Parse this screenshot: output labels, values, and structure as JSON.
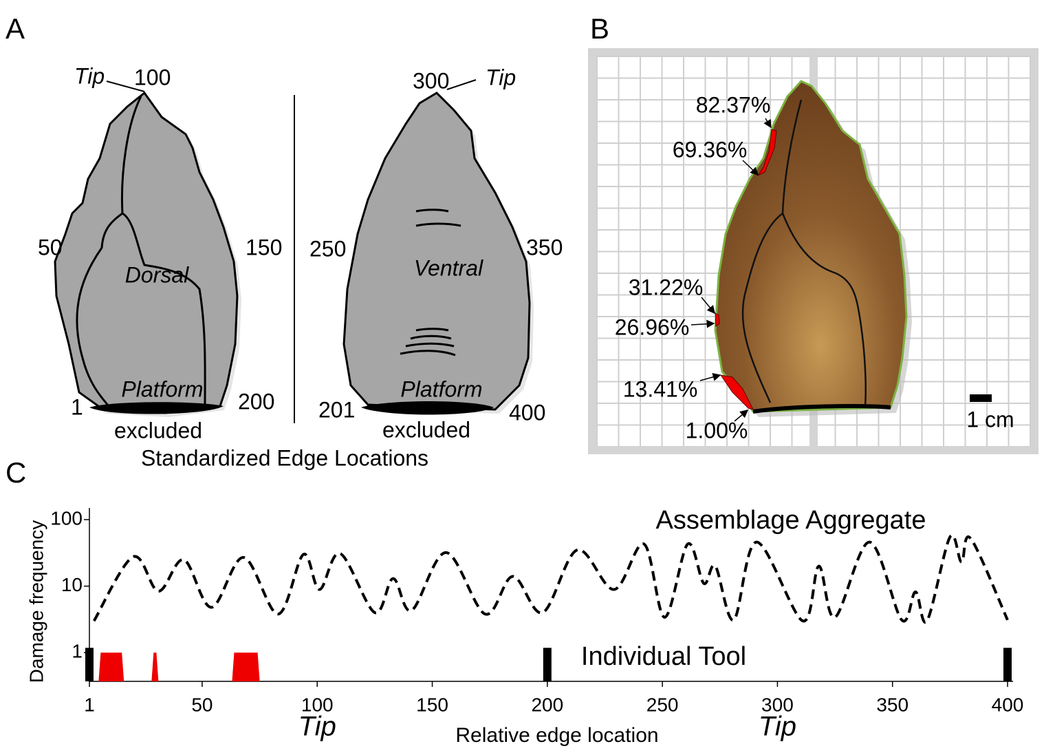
{
  "panel_a": {
    "label": "A",
    "caption": "Standardized Edge Locations",
    "dorsal": {
      "name": "Dorsal",
      "platform": "Platform",
      "excluded": "excluded",
      "tip": "Tip",
      "edge_labels": [
        "100",
        "50",
        "150",
        "1",
        "200"
      ]
    },
    "ventral": {
      "name": "Ventral",
      "platform": "Platform",
      "excluded": "excluded",
      "tip": "Tip",
      "edge_labels": [
        "300",
        "250",
        "350",
        "201",
        "400"
      ]
    }
  },
  "panel_b": {
    "label": "B",
    "scale": "1 cm",
    "damage_labels": [
      "82.37%",
      "69.36%",
      "31.22%",
      "26.96%",
      "13.41%",
      "1.00%"
    ]
  },
  "panel_label": "C",
  "chart_data": {
    "type": "line",
    "x_label": "Relative edge location",
    "y_label": "Damage frequency",
    "log_y": true,
    "xlim": [
      1,
      400
    ],
    "ylim": [
      0.37,
      150
    ],
    "xticks": [
      1,
      50,
      100,
      150,
      200,
      250,
      300,
      350,
      400
    ],
    "yticks": [
      1,
      10,
      100
    ],
    "annotations": [
      {
        "text": "Tip",
        "x": 100
      },
      {
        "text": "Tip",
        "x": 300
      }
    ],
    "series": [
      {
        "name": "Assemblage Aggregate",
        "color": "#000000",
        "x": [
          3,
          20,
          31,
          42,
          54,
          68,
          83,
          94,
          101,
          110,
          125,
          133,
          141,
          156,
          173,
          185,
          198,
          213,
          229,
          242,
          251,
          261,
          268,
          273,
          281,
          291,
          311,
          318,
          325,
          340,
          354,
          360,
          365,
          375,
          380,
          384,
          400
        ],
        "values": [
          3.0,
          27.6,
          8.4,
          25,
          4.8,
          27,
          3.8,
          30,
          8.9,
          31,
          4,
          13,
          4.3,
          32,
          3.8,
          14,
          4,
          35,
          8.9,
          43,
          3.4,
          43,
          11,
          20,
          3.1,
          46,
          3,
          20,
          3.4,
          46,
          3.1,
          8.2,
          3,
          55,
          23,
          52,
          3.1
        ]
      }
    ],
    "individual_tool": {
      "name": "Individual Tool",
      "color": "#ee0000",
      "value": 1,
      "damage_ranges": [
        [
          5,
          16
        ],
        [
          28,
          31
        ],
        [
          63,
          75
        ]
      ],
      "excluded": [
        1,
        200,
        400
      ],
      "excluded_color": "#000000"
    }
  }
}
